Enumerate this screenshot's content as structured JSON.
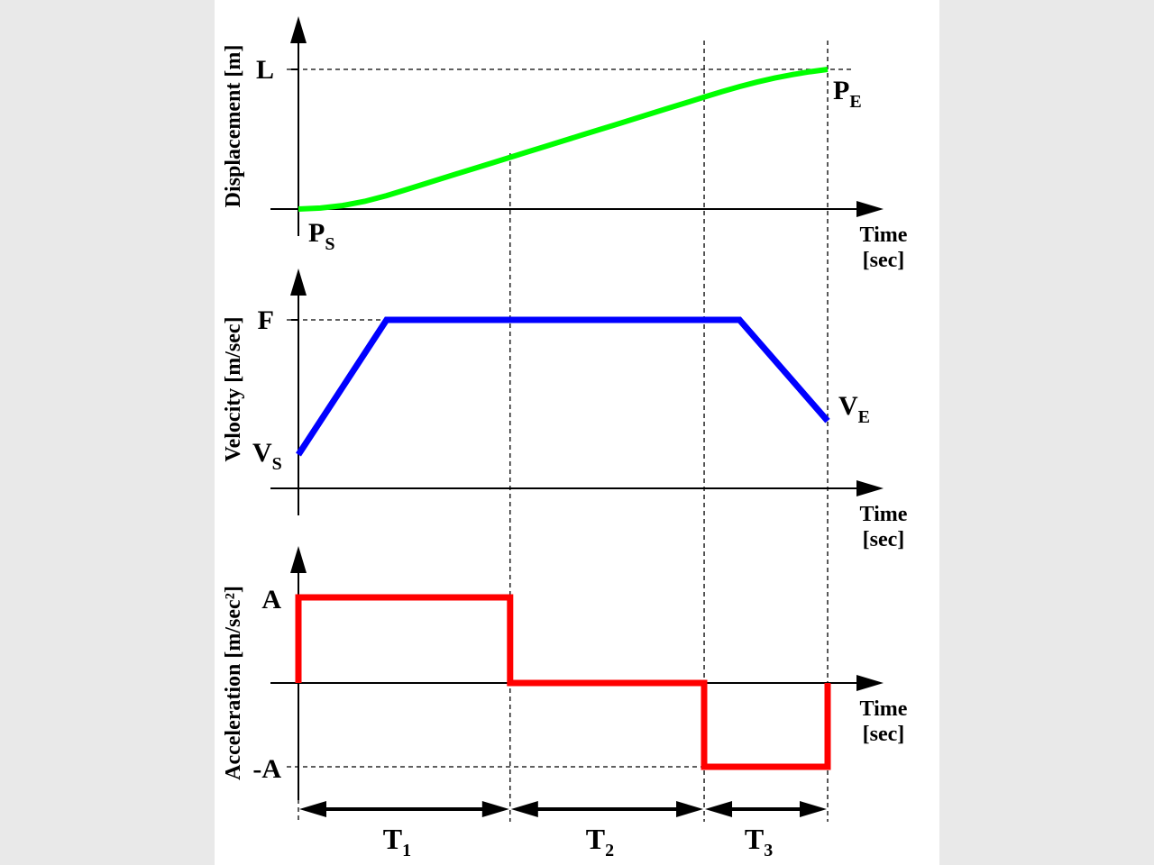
{
  "chart_data": [
    {
      "type": "line",
      "title": "",
      "ylabel": "Displacement [m]",
      "xlabel_line1": "Time",
      "xlabel_line2": "[sec]",
      "y_ticks": [
        "L"
      ],
      "start_label": {
        "main": "P",
        "sub": "S"
      },
      "end_label": {
        "main": "P",
        "sub": "E"
      },
      "color": "#00ff00",
      "x": [
        0,
        0.25,
        0.5,
        0.75,
        1.0,
        1.2,
        1.4,
        1.6,
        1.8,
        2.0,
        2.2,
        2.4,
        2.6,
        2.8,
        3.0,
        3.2,
        3.4,
        3.6,
        3.8,
        4.0,
        4.2,
        4.4,
        4.6,
        4.8,
        5.0,
        5.2,
        5.4,
        5.6,
        5.8,
        6.0
      ],
      "y": [
        0,
        0.0167,
        0.0604,
        0.1313,
        0.2292,
        0.3229,
        0.4167,
        0.5104,
        0.6042,
        0.6979,
        0.7917,
        0.8854,
        0.9792,
        1.0729,
        1.1667,
        1.2604,
        1.3542,
        1.4479,
        1.5417,
        1.6354,
        1.7292,
        1.8229,
        1.9167,
        2.0104,
        2.0973,
        2.1749,
        2.2432,
        2.3021,
        2.3517,
        2.392
      ],
      "ylim": [
        0,
        2.392
      ]
    },
    {
      "type": "line",
      "title": "",
      "ylabel": "Velocity [m/sec]",
      "xlabel_line1": "Time",
      "xlabel_line2": "[sec]",
      "y_ticks": [
        "F"
      ],
      "start_label": {
        "main": "V",
        "sub": "S"
      },
      "end_label": {
        "main": "V",
        "sub": "E"
      },
      "color": "#0000ff",
      "x": [
        0,
        1.0,
        4.0,
        5.0,
        6.0
      ],
      "y": [
        0.1,
        0.5,
        0.5,
        0.5,
        0.2
      ],
      "ylim": [
        0,
        0.58
      ]
    },
    {
      "type": "line",
      "title": "",
      "ylabel": "Acceleration [m/sec²]",
      "xlabel_line1": "Time",
      "xlabel_line2": "[sec]",
      "y_ticks": [
        "A",
        "-A"
      ],
      "color": "#ff0000",
      "x": [
        0,
        0,
        2.4,
        2.4,
        4.6,
        4.6,
        6.0,
        6.0
      ],
      "y": [
        0,
        1,
        1,
        0,
        0,
        -1,
        -1,
        0
      ],
      "ylim": [
        -1.2,
        1.5
      ]
    }
  ],
  "intervals": [
    {
      "main": "T",
      "sub": "1"
    },
    {
      "main": "T",
      "sub": "2"
    },
    {
      "main": "T",
      "sub": "3"
    }
  ]
}
